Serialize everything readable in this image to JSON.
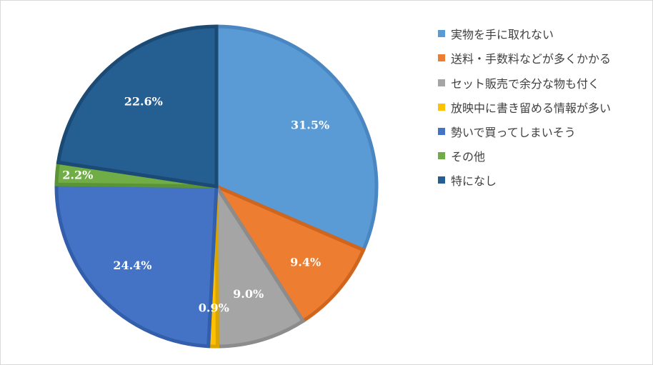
{
  "chart_data": {
    "type": "pie",
    "title": "",
    "legend_position": "right",
    "start_angle_deg": 0,
    "direction": "clockwise",
    "slices": [
      {
        "label": "実物を手に取れない",
        "value": 31.5,
        "display": "31.5%",
        "color": "#5b9bd5",
        "edge": "#4a87c2"
      },
      {
        "label": "送料・手数料などが多くかかる",
        "value": 9.4,
        "display": "9.4%",
        "color": "#ed7d31",
        "edge": "#d0661d"
      },
      {
        "label": "セット販売で余分な物も付く",
        "value": 9.0,
        "display": "9.0%",
        "color": "#a5a5a5",
        "edge": "#8c8c8c"
      },
      {
        "label": "放映中に書き留める情報が多い",
        "value": 0.9,
        "display": "0.9%",
        "color": "#ffc000",
        "edge": "#dba500"
      },
      {
        "label": "勢いで買ってしまいそう",
        "value": 24.4,
        "display": "24.4%",
        "color": "#4472c4",
        "edge": "#335eab"
      },
      {
        "label": "その他",
        "value": 2.2,
        "display": "2.2%",
        "color": "#70ad47",
        "edge": "#5b9436"
      },
      {
        "label": "特になし",
        "value": 22.6,
        "display": "22.6%",
        "color": "#255e91",
        "edge": "#1b4a75"
      }
    ]
  }
}
